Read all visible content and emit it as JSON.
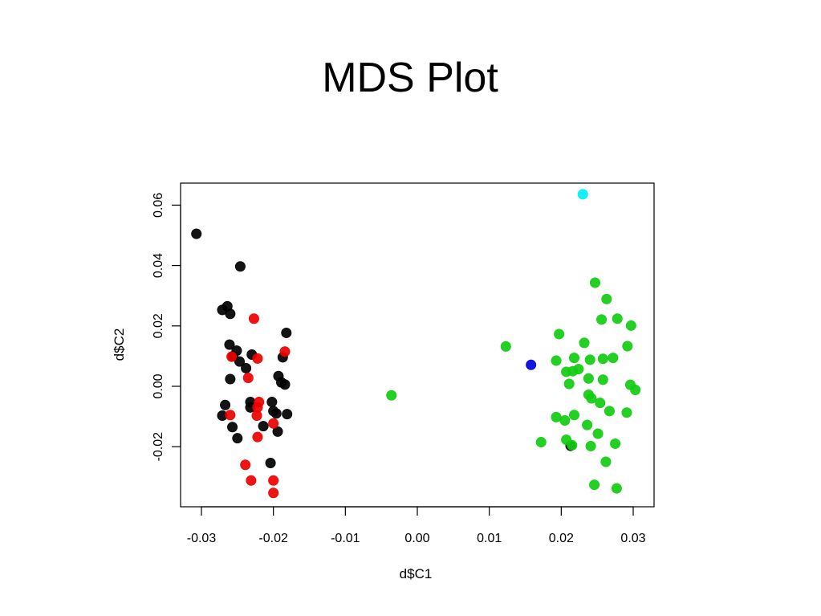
{
  "chart_data": {
    "type": "scatter",
    "title": "MDS Plot",
    "xlabel": "d$C1",
    "ylabel": "d$C2",
    "xlim": [
      -0.0325,
      0.0325
    ],
    "ylim": [
      -0.0395,
      0.068
    ],
    "grid": false,
    "x_ticks": [
      -0.03,
      -0.02,
      -0.01,
      0.0,
      0.01,
      0.02,
      0.03
    ],
    "x_tick_labels": [
      "-0.03",
      "-0.02",
      "-0.01",
      "0.00",
      "0.01",
      "0.02",
      "0.03"
    ],
    "y_ticks": [
      -0.02,
      0.0,
      0.02,
      0.04,
      0.06
    ],
    "y_tick_labels": [
      "-0.02",
      "0.00",
      "0.02",
      "0.04",
      "0.06"
    ],
    "series": [
      {
        "color": "#000000",
        "points": [
          [
            -0.0307,
            0.0505
          ],
          [
            -0.0246,
            0.0397
          ],
          [
            -0.0271,
            0.0253
          ],
          [
            -0.0264,
            0.0265
          ],
          [
            -0.026,
            0.024
          ],
          [
            -0.0261,
            0.0138
          ],
          [
            -0.0251,
            0.0118
          ],
          [
            -0.0256,
            0.01
          ],
          [
            -0.0247,
            0.0082
          ],
          [
            -0.0238,
            0.006
          ],
          [
            -0.023,
            0.0105
          ],
          [
            -0.026,
            0.0024
          ],
          [
            -0.0182,
            0.0177
          ],
          [
            -0.0187,
            0.0096
          ],
          [
            -0.0193,
            0.0034
          ],
          [
            -0.0189,
            0.0013
          ],
          [
            -0.0184,
            0.0006
          ],
          [
            -0.0267,
            -0.0062
          ],
          [
            -0.0271,
            -0.0097
          ],
          [
            -0.0257,
            -0.0135
          ],
          [
            -0.025,
            -0.0172
          ],
          [
            -0.0232,
            -0.0052
          ],
          [
            -0.0232,
            -0.007
          ],
          [
            -0.0202,
            -0.0052
          ],
          [
            -0.02,
            -0.0082
          ],
          [
            -0.0196,
            -0.009
          ],
          [
            -0.0181,
            -0.0092
          ],
          [
            -0.0214,
            -0.0132
          ],
          [
            -0.0194,
            -0.015
          ],
          [
            -0.0204,
            -0.0254
          ],
          [
            0.0213,
            -0.0197
          ]
        ]
      },
      {
        "color": "#ee0000",
        "points": [
          [
            -0.0227,
            0.0224
          ],
          [
            -0.0258,
            0.0098
          ],
          [
            -0.0222,
            0.0092
          ],
          [
            -0.0184,
            0.0115
          ],
          [
            -0.0235,
            0.0028
          ],
          [
            -0.022,
            -0.0052
          ],
          [
            -0.0222,
            -0.007
          ],
          [
            -0.0223,
            -0.0097
          ],
          [
            -0.026,
            -0.0095
          ],
          [
            -0.02,
            -0.0123
          ],
          [
            -0.0222,
            -0.0168
          ],
          [
            -0.0239,
            -0.026
          ],
          [
            -0.0231,
            -0.0312
          ],
          [
            -0.02,
            -0.0312
          ],
          [
            -0.02,
            -0.0353
          ]
        ]
      },
      {
        "color": "#11cc11",
        "points": [
          [
            -0.0036,
            -0.003
          ],
          [
            0.0123,
            0.0132
          ],
          [
            0.0247,
            0.0343
          ],
          [
            0.0263,
            0.0289
          ],
          [
            0.0256,
            0.0221
          ],
          [
            0.0278,
            0.0224
          ],
          [
            0.0297,
            0.0201
          ],
          [
            0.0197,
            0.0173
          ],
          [
            0.0232,
            0.0144
          ],
          [
            0.0218,
            0.0094
          ],
          [
            0.024,
            0.0088
          ],
          [
            0.0258,
            0.0091
          ],
          [
            0.0272,
            0.0094
          ],
          [
            0.0292,
            0.0133
          ],
          [
            0.0193,
            0.0085
          ],
          [
            0.0207,
            0.0048
          ],
          [
            0.0216,
            0.005
          ],
          [
            0.0224,
            0.0057
          ],
          [
            0.0238,
            0.0026
          ],
          [
            0.0258,
            0.0022
          ],
          [
            0.0211,
            0.0008
          ],
          [
            0.0296,
            0.0005
          ],
          [
            0.0303,
            -0.0012
          ],
          [
            0.0238,
            -0.0028
          ],
          [
            0.0242,
            -0.004
          ],
          [
            0.0254,
            -0.0055
          ],
          [
            0.0267,
            -0.0082
          ],
          [
            0.0291,
            -0.0087
          ],
          [
            0.0218,
            -0.0095
          ],
          [
            0.0193,
            -0.0102
          ],
          [
            0.0205,
            -0.0113
          ],
          [
            0.0236,
            -0.0128
          ],
          [
            0.0251,
            -0.0157
          ],
          [
            0.0172,
            -0.0185
          ],
          [
            0.0207,
            -0.0177
          ],
          [
            0.0215,
            -0.0195
          ],
          [
            0.0241,
            -0.0198
          ],
          [
            0.0275,
            -0.019
          ],
          [
            0.0262,
            -0.025
          ],
          [
            0.0246,
            -0.0326
          ],
          [
            0.0277,
            -0.0338
          ]
        ]
      },
      {
        "color": "#0000dd",
        "points": [
          [
            0.0158,
            0.0071
          ]
        ]
      },
      {
        "color": "#00eeff",
        "points": [
          [
            0.023,
            0.0636
          ]
        ]
      }
    ]
  }
}
